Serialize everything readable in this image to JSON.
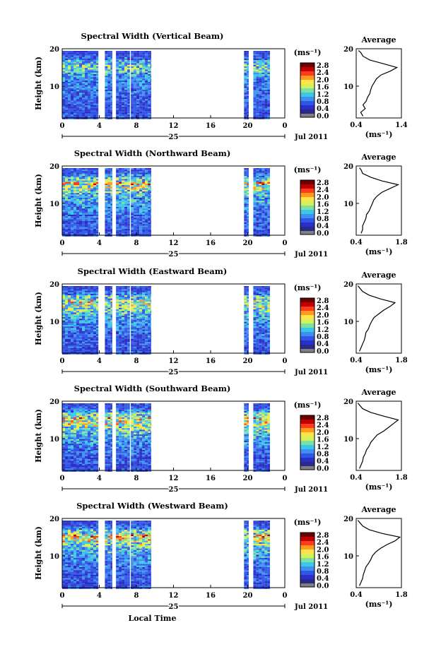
{
  "colorbar": {
    "unit_label": "(ms⁻¹)",
    "ticks": [
      "2.8",
      "2.4",
      "2.0",
      "1.6",
      "1.2",
      "0.8",
      "0.4",
      "0.0"
    ],
    "colors": [
      "#6b0000",
      "#c00000",
      "#ff3b1d",
      "#ff9a1e",
      "#ffe34a",
      "#d4f05a",
      "#7ee1a4",
      "#3bc8e8",
      "#3f8ef2",
      "#2f56e6",
      "#2a2fc7",
      "#2a2a8a",
      "#808080"
    ]
  },
  "common": {
    "time_ticks": [
      "0",
      "4",
      "8",
      "12",
      "16",
      "20",
      "0"
    ],
    "day_label": "25",
    "month_label": "Jul 2011",
    "height_ticks": [
      "20",
      "10"
    ],
    "ylabel": "Height (km)",
    "xlabel": "Local Time",
    "avg_title": "Average",
    "avg_xlabel": "(ms⁻¹)",
    "avg_ytick_labels": [
      "20",
      "10"
    ]
  },
  "chart_data": [
    {
      "type": "heatmap",
      "title": "Spectral Width (Vertical Beam)",
      "x_range_hours": [
        0,
        24
      ],
      "y_range_km": [
        1.5,
        20
      ],
      "value_range": [
        0,
        3.0
      ],
      "data_blocks_hours": [
        [
          0,
          3.9
        ],
        [
          4.6,
          5.4
        ],
        [
          5.8,
          7.3
        ],
        [
          7.4,
          9.6
        ],
        [
          19.6,
          20.1
        ],
        [
          20.6,
          22.4
        ]
      ],
      "average_profile": {
        "xlim": [
          0.4,
          1.4
        ],
        "xtick_labels": [
          "0.4",
          "1.4"
        ],
        "height_km": [
          2,
          3,
          4,
          5,
          6,
          7,
          8,
          9,
          10,
          11,
          12,
          13,
          14,
          15,
          16,
          17,
          18,
          19,
          19.5
        ],
        "width_ms": [
          0.55,
          0.5,
          0.6,
          0.55,
          0.62,
          0.65,
          0.7,
          0.72,
          0.75,
          0.8,
          0.85,
          0.95,
          1.15,
          1.3,
          1.0,
          0.7,
          0.55,
          0.5,
          0.45
        ]
      }
    },
    {
      "type": "heatmap",
      "title": "Spectral Width (Northward Beam)",
      "x_range_hours": [
        0,
        24
      ],
      "y_range_km": [
        1.5,
        20
      ],
      "value_range": [
        0,
        3.0
      ],
      "data_blocks_hours": [
        [
          0,
          3.9
        ],
        [
          4.6,
          5.4
        ],
        [
          5.8,
          7.3
        ],
        [
          7.4,
          9.6
        ],
        [
          19.6,
          20.1
        ],
        [
          20.6,
          22.4
        ]
      ],
      "average_profile": {
        "xlim": [
          0.4,
          1.8
        ],
        "xtick_labels": [
          "0.4",
          "1.8"
        ],
        "height_km": [
          2,
          3,
          4,
          5,
          6,
          7,
          8,
          9,
          10,
          11,
          12,
          13,
          14,
          15,
          16,
          17,
          18,
          19,
          19.5
        ],
        "width_ms": [
          0.55,
          0.6,
          0.6,
          0.65,
          0.7,
          0.72,
          0.8,
          0.85,
          0.9,
          0.95,
          1.05,
          1.2,
          1.45,
          1.7,
          1.2,
          0.85,
          0.6,
          0.55,
          0.5
        ]
      }
    },
    {
      "type": "heatmap",
      "title": "Spectral Width (Eastward Beam)",
      "x_range_hours": [
        0,
        24
      ],
      "y_range_km": [
        1.5,
        20
      ],
      "value_range": [
        0,
        3.0
      ],
      "data_blocks_hours": [
        [
          0,
          3.9
        ],
        [
          4.6,
          5.4
        ],
        [
          5.8,
          7.3
        ],
        [
          7.4,
          9.6
        ],
        [
          19.6,
          20.1
        ],
        [
          20.6,
          22.4
        ]
      ],
      "average_profile": {
        "xlim": [
          0.4,
          1.8
        ],
        "xtick_labels": [
          "0.4",
          "1.8"
        ],
        "height_km": [
          2,
          3,
          4,
          5,
          6,
          7,
          8,
          9,
          10,
          11,
          12,
          13,
          14,
          15,
          16,
          17,
          18,
          19,
          19.5
        ],
        "width_ms": [
          0.5,
          0.55,
          0.6,
          0.65,
          0.68,
          0.7,
          0.78,
          0.82,
          0.88,
          0.95,
          1.1,
          1.25,
          1.45,
          1.6,
          1.15,
          0.8,
          0.6,
          0.5,
          0.45
        ]
      }
    },
    {
      "type": "heatmap",
      "title": "Spectral Width (Southward Beam)",
      "x_range_hours": [
        0,
        24
      ],
      "y_range_km": [
        1.5,
        20
      ],
      "value_range": [
        0,
        3.0
      ],
      "data_blocks_hours": [
        [
          0,
          3.9
        ],
        [
          4.6,
          5.4
        ],
        [
          5.8,
          7.3
        ],
        [
          7.4,
          9.6
        ],
        [
          19.6,
          20.1
        ],
        [
          20.6,
          22.4
        ]
      ],
      "average_profile": {
        "xlim": [
          0.4,
          1.8
        ],
        "xtick_labels": [
          "0.4",
          "1.8"
        ],
        "height_km": [
          2,
          3,
          4,
          5,
          6,
          7,
          8,
          9,
          10,
          11,
          12,
          13,
          14,
          15,
          16,
          17,
          18,
          19,
          19.5
        ],
        "width_ms": [
          0.5,
          0.55,
          0.6,
          0.62,
          0.68,
          0.72,
          0.8,
          0.85,
          0.95,
          1.05,
          1.25,
          1.4,
          1.55,
          1.7,
          1.25,
          0.85,
          0.6,
          0.5,
          0.45
        ]
      }
    },
    {
      "type": "heatmap",
      "title": "Spectral Width (Westward Beam)",
      "x_range_hours": [
        0,
        24
      ],
      "y_range_km": [
        1.5,
        20
      ],
      "value_range": [
        0,
        3.0
      ],
      "data_blocks_hours": [
        [
          0,
          3.9
        ],
        [
          4.6,
          5.4
        ],
        [
          5.8,
          7.3
        ],
        [
          7.4,
          9.6
        ],
        [
          19.6,
          20.1
        ],
        [
          20.6,
          22.4
        ]
      ],
      "average_profile": {
        "xlim": [
          0.4,
          1.8
        ],
        "xtick_labels": [
          "0.4",
          "1.8"
        ],
        "height_km": [
          2,
          3,
          4,
          5,
          6,
          7,
          8,
          9,
          10,
          11,
          12,
          13,
          14,
          15,
          16,
          17,
          18,
          19,
          19.5
        ],
        "width_ms": [
          0.5,
          0.55,
          0.6,
          0.62,
          0.66,
          0.7,
          0.78,
          0.85,
          0.9,
          1.0,
          1.15,
          1.35,
          1.6,
          1.75,
          1.2,
          0.8,
          0.6,
          0.5,
          0.45
        ]
      }
    }
  ]
}
